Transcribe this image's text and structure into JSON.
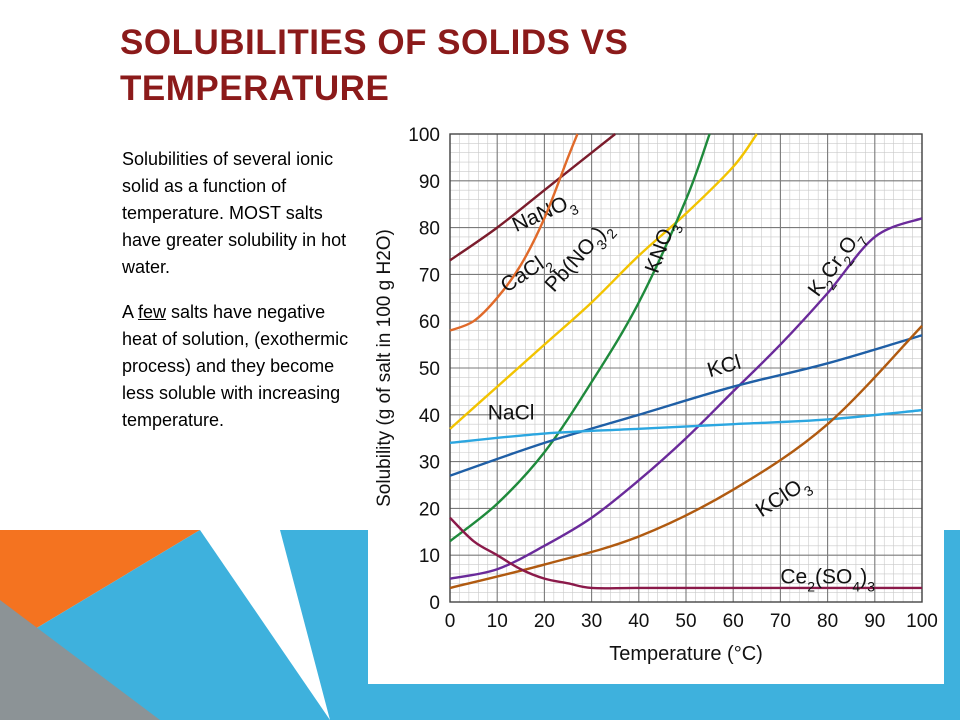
{
  "slide": {
    "title": "SOLUBILITIES OF SOLIDS VS TEMPERATURE",
    "paragraph1": "Solubilities of several ionic solid as a function of temperature. MOST salts have greater solubility in hot water.",
    "paragraph2_pre": "A ",
    "paragraph2_underlined": "few",
    "paragraph2_post": " salts have negative heat of solution, (exothermic process) and they become less soluble with increasing temperature."
  },
  "theme": {
    "title_color": "#8b1a1a",
    "orange": "#f47320",
    "blue": "#3eb1dd",
    "gray": "#8c9396"
  },
  "chart_data": {
    "type": "line",
    "title": "",
    "xlabel": "Temperature (°C)",
    "ylabel": "Solubility (g of salt in 100 g H2O)",
    "xlim": [
      0,
      100
    ],
    "ylim": [
      0,
      100
    ],
    "x_ticks": [
      0,
      10,
      20,
      30,
      40,
      50,
      60,
      70,
      80,
      90,
      100
    ],
    "y_ticks": [
      0,
      10,
      20,
      30,
      40,
      50,
      60,
      70,
      80,
      90,
      100
    ],
    "grid": true,
    "legend": "inline labels",
    "series": [
      {
        "name": "NaNO3",
        "label_main": "NaNO",
        "label_sub": "3",
        "color": "#7b1c2c",
        "x": [
          0,
          10,
          20,
          30,
          35
        ],
        "y": [
          73,
          80,
          88,
          96,
          100
        ]
      },
      {
        "name": "CaCl2",
        "label_main": "CaCl",
        "label_sub": "2",
        "color": "#e06a2a",
        "x": [
          0,
          5,
          10,
          15,
          20,
          25,
          27
        ],
        "y": [
          58,
          60,
          65,
          72,
          82,
          95,
          100
        ]
      },
      {
        "name": "Pb(NO3)2",
        "label_main": "Pb(NO",
        "label_sub": "3",
        "label_tail": ")",
        "label_sub2": "2",
        "color": "#f2c300",
        "x": [
          0,
          10,
          20,
          30,
          40,
          50,
          60,
          65
        ],
        "y": [
          37,
          46,
          55,
          64,
          74,
          83,
          93,
          100
        ]
      },
      {
        "name": "KNO3",
        "label_main": "KNO",
        "label_sub": "3",
        "color": "#1f8a3c",
        "x": [
          0,
          10,
          20,
          30,
          40,
          50,
          55
        ],
        "y": [
          13,
          21,
          32,
          47,
          64,
          86,
          100
        ]
      },
      {
        "name": "K2Cr2O7",
        "label_main": "K",
        "label_sub": "2",
        "label_tail": "Cr",
        "label_sub2": "2",
        "label_tail2": "O",
        "label_sub3": "7",
        "color": "#6a2a9a",
        "x": [
          0,
          10,
          20,
          30,
          40,
          50,
          60,
          70,
          80,
          90,
          100
        ],
        "y": [
          5,
          7,
          12,
          18,
          26,
          35,
          45,
          55,
          66,
          78,
          82
        ]
      },
      {
        "name": "KCl",
        "label_main": "KCl",
        "label_sub": "",
        "color": "#1f5fa6",
        "x": [
          0,
          20,
          40,
          60,
          80,
          100
        ],
        "y": [
          27,
          34,
          40,
          46,
          51,
          57
        ]
      },
      {
        "name": "NaCl",
        "label_main": "NaCl",
        "label_sub": "",
        "color": "#2ba6e0",
        "x": [
          0,
          20,
          40,
          60,
          80,
          100
        ],
        "y": [
          34,
          36,
          37,
          38,
          39,
          41
        ]
      },
      {
        "name": "KClO3",
        "label_main": "KClO",
        "label_sub": "3",
        "color": "#b05a10",
        "x": [
          0,
          20,
          40,
          60,
          80,
          100
        ],
        "y": [
          3,
          8,
          14,
          24,
          38,
          59
        ]
      },
      {
        "name": "Ce2(SO4)3",
        "label_main": "Ce",
        "label_sub": "2",
        "label_tail": "(SO",
        "label_sub2": "4",
        "label_tail2": ")",
        "label_sub3": "3",
        "color": "#8b1a4a",
        "x": [
          0,
          5,
          10,
          15,
          20,
          25,
          30,
          40,
          60,
          80,
          100
        ],
        "y": [
          18,
          13,
          10,
          7,
          5,
          4,
          3,
          3,
          3,
          3,
          3
        ]
      }
    ]
  }
}
